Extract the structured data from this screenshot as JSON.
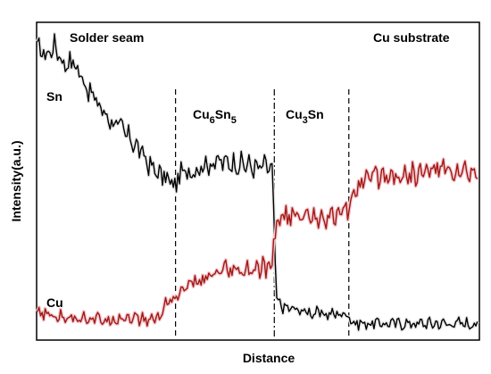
{
  "chart_data": {
    "type": "line",
    "xlabel": "Distance",
    "ylabel": "Intensity(a.u.)",
    "x_range": [
      0,
      100
    ],
    "y_range": [
      0,
      100
    ],
    "grid": false,
    "axis_ticks": false,
    "regions": [
      {
        "name": "Solder seam",
        "x_start": 0,
        "x_end": 31.3
      },
      {
        "name": "Cu6Sn5",
        "x_start": 31.3,
        "x_end": 53.7,
        "base": "Cu",
        "sub1": "6",
        "mid": "Sn",
        "sub2": "5"
      },
      {
        "name": "Cu3Sn",
        "x_start": 53.7,
        "x_end": 70.6,
        "base": "Cu",
        "sub1": "3",
        "mid": "Sn"
      },
      {
        "name": "Cu substrate",
        "x_start": 70.6,
        "x_end": 100
      }
    ],
    "boundaries": [
      {
        "x": 31.3,
        "style": "dashed"
      },
      {
        "x": 53.7,
        "style": "dashdot"
      },
      {
        "x": 70.6,
        "style": "dashed"
      }
    ],
    "series": [
      {
        "name": "Sn",
        "color": "#000000",
        "x": [
          0,
          2,
          4,
          6,
          8,
          10,
          12,
          14,
          16,
          18,
          20,
          22,
          24,
          26,
          28,
          30,
          31.3,
          32,
          36,
          40,
          44,
          48,
          50,
          52,
          53.2,
          53.7,
          54.2,
          56,
          60,
          64,
          68,
          70.6,
          71.5,
          75,
          80,
          85,
          90,
          95,
          100
        ],
        "values": [
          92,
          90,
          93,
          87,
          88,
          83,
          78,
          74,
          70,
          68,
          65,
          62,
          58,
          54,
          52,
          50,
          48,
          52,
          54,
          56,
          56,
          55,
          54,
          55,
          53,
          35,
          12,
          10,
          9,
          8,
          8,
          8,
          5,
          5,
          5,
          5,
          5,
          5,
          5
        ]
      },
      {
        "name": "Cu",
        "color": "#a01812",
        "x": [
          0,
          5,
          10,
          15,
          20,
          25,
          28,
          29,
          31.3,
          34,
          38,
          42,
          46,
          50,
          52,
          53.2,
          53.7,
          54.5,
          58,
          62,
          66,
          70.6,
          71.5,
          74,
          78,
          82,
          86,
          90,
          95,
          100
        ],
        "values": [
          8,
          7,
          7,
          6,
          7,
          6,
          7,
          12,
          13,
          17,
          19,
          21,
          21,
          22,
          22,
          24,
          33,
          38,
          39,
          39,
          39,
          40,
          47,
          50,
          52,
          52,
          52,
          54,
          53,
          52
        ]
      }
    ],
    "series_labels": [
      "Sn",
      "Cu"
    ]
  }
}
